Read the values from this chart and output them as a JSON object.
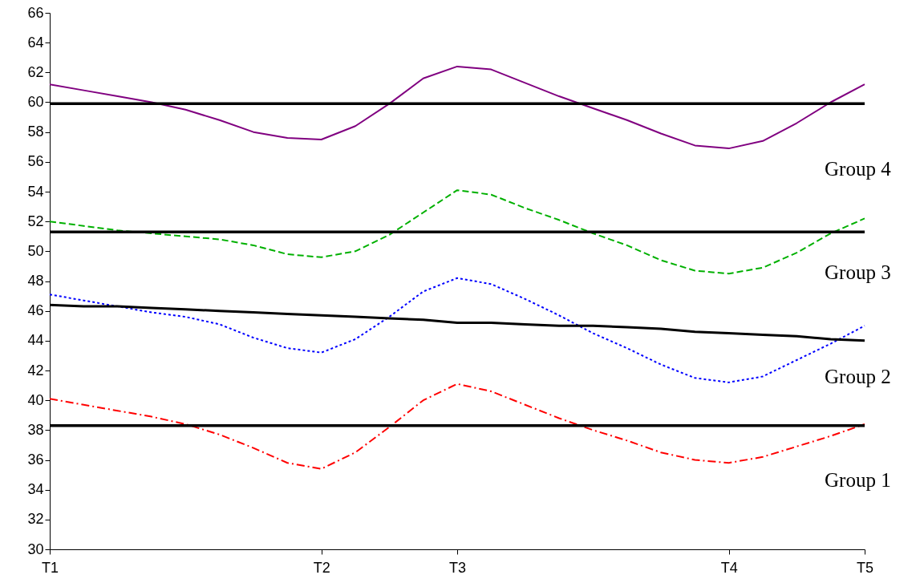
{
  "chart_data": {
    "type": "line",
    "categories": [
      "T1",
      null,
      null,
      null,
      null,
      null,
      null,
      null,
      "T2",
      null,
      null,
      null,
      "T3",
      null,
      null,
      null,
      null,
      null,
      null,
      null,
      "T4",
      null,
      null,
      null,
      "T5"
    ],
    "ylim": [
      30,
      66
    ],
    "yticks": [
      30,
      32,
      34,
      36,
      38,
      40,
      42,
      44,
      46,
      48,
      50,
      52,
      54,
      56,
      58,
      60,
      62,
      64,
      66
    ],
    "grid": false,
    "marker": "none",
    "series": [
      {
        "color": "#800080",
        "line_style": "solid",
        "values": [
          61.2,
          60.8,
          60.4,
          60.0,
          59.5,
          58.8,
          58.0,
          57.6,
          57.5,
          58.4,
          59.9,
          61.6,
          62.4,
          62.2,
          61.3,
          60.4,
          59.6,
          58.8,
          57.9,
          57.1,
          56.9,
          57.4,
          58.6,
          60.0,
          61.2
        ]
      },
      {
        "color": "#00b000",
        "line_style": "dashed",
        "values": [
          52.0,
          51.7,
          51.4,
          51.2,
          51.0,
          50.8,
          50.4,
          49.8,
          49.6,
          50.0,
          51.1,
          52.6,
          54.1,
          53.8,
          52.9,
          52.1,
          51.2,
          50.4,
          49.4,
          48.7,
          48.5,
          48.9,
          49.9,
          51.2,
          52.2
        ]
      },
      {
        "color": "#0000ff",
        "line_style": "dotted",
        "values": [
          47.1,
          46.7,
          46.3,
          45.9,
          45.6,
          45.1,
          44.2,
          43.5,
          43.2,
          44.1,
          45.6,
          47.3,
          48.2,
          47.8,
          46.8,
          45.7,
          44.5,
          43.5,
          42.4,
          41.5,
          41.2,
          41.6,
          42.7,
          43.8,
          45.0
        ]
      },
      {
        "color": "#ff0000",
        "line_style": "dashdot",
        "values": [
          40.1,
          39.7,
          39.3,
          38.9,
          38.4,
          37.7,
          36.8,
          35.8,
          35.4,
          36.5,
          38.2,
          40.0,
          41.1,
          40.6,
          39.7,
          38.8,
          38.0,
          37.3,
          36.5,
          36.0,
          35.8,
          36.2,
          36.9,
          37.6,
          38.4
        ]
      },
      {
        "color": "#000000",
        "line_style": "solid",
        "values": [
          46.4,
          46.3,
          46.3,
          46.2,
          46.1,
          46.0,
          45.9,
          45.8,
          45.7,
          45.6,
          45.5,
          45.4,
          45.2,
          45.2,
          45.1,
          45.0,
          45.0,
          44.9,
          44.8,
          44.6,
          44.5,
          44.4,
          44.3,
          44.1,
          44.0
        ]
      }
    ],
    "ref_lines": [
      {
        "axis": "y",
        "value": 59.9,
        "color": "#000000"
      },
      {
        "axis": "y",
        "value": 51.3,
        "color": "#000000"
      },
      {
        "axis": "y",
        "value": 38.3,
        "color": "#000000"
      }
    ],
    "annotations": [
      "Group 4",
      "Group 3",
      "Group 2",
      "Group 1"
    ]
  }
}
